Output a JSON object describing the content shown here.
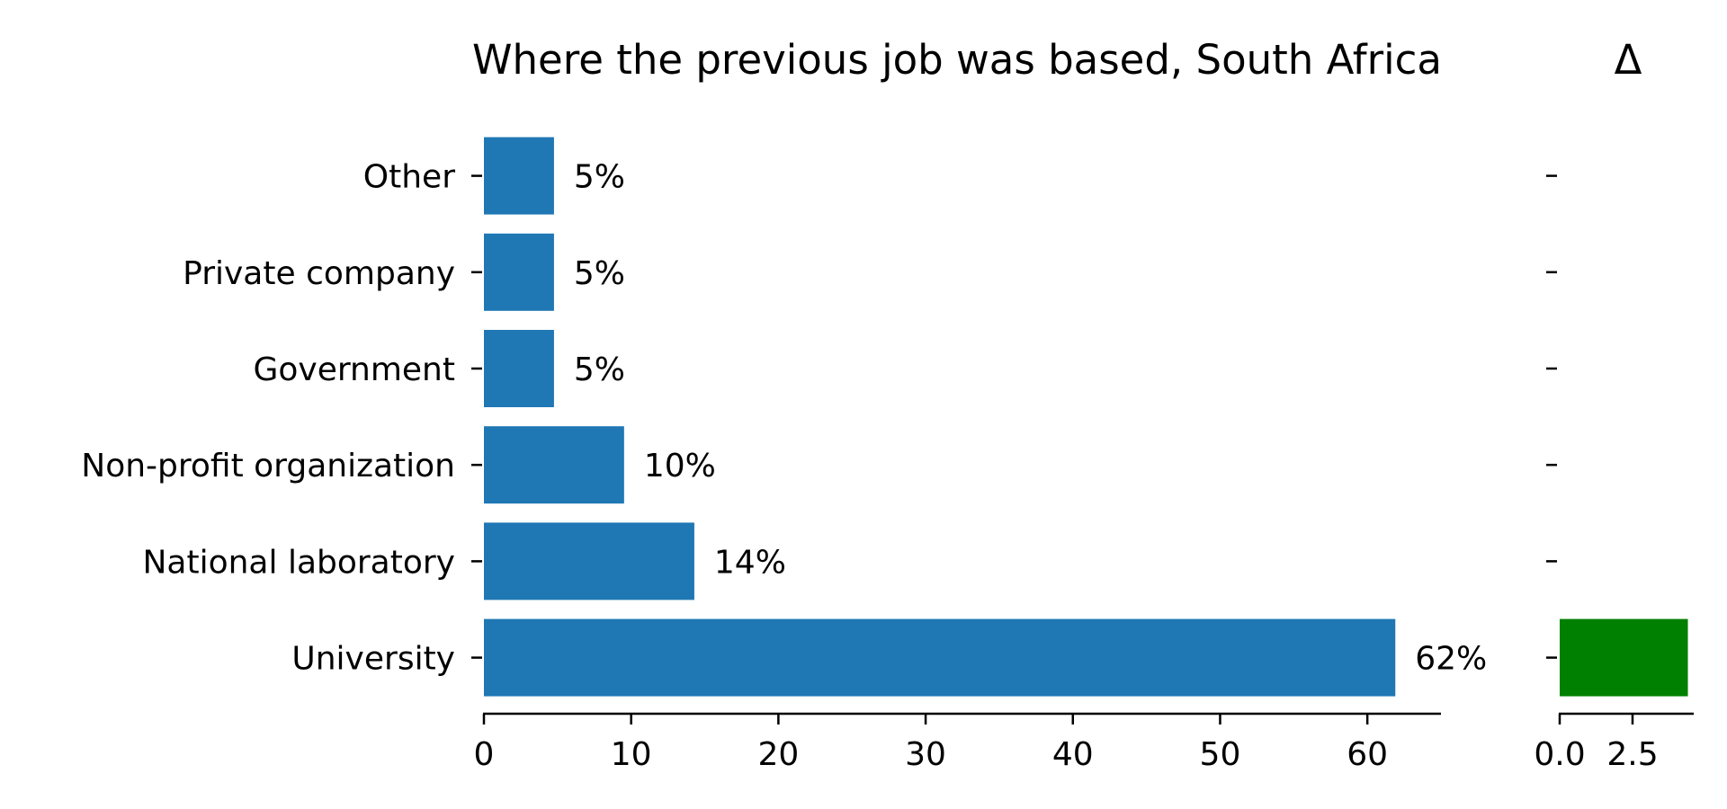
{
  "chart_data": [
    {
      "type": "bar",
      "orientation": "horizontal",
      "title": "Where the previous job was based, South Africa",
      "categories": [
        "Other",
        "Private company",
        "Government",
        "Non-profit organization",
        "National laboratory",
        "University"
      ],
      "values": [
        4.76,
        4.76,
        4.76,
        9.52,
        14.29,
        61.9
      ],
      "data_labels": [
        "5%",
        "5%",
        "5%",
        "10%",
        "14%",
        "62%"
      ],
      "xlim": [
        0,
        65
      ],
      "xticks": [
        0,
        10,
        20,
        30,
        40,
        50,
        60
      ],
      "xtick_labels": [
        "0",
        "10",
        "20",
        "30",
        "40",
        "50",
        "60"
      ],
      "bar_color": "#1f77b4",
      "grid": false
    },
    {
      "type": "bar",
      "orientation": "horizontal",
      "title": "Δ",
      "categories": [
        "Other",
        "Private company",
        "Government",
        "Non-profit organization",
        "National laboratory",
        "University"
      ],
      "values": [
        null,
        null,
        null,
        null,
        null,
        4.4
      ],
      "xlim": [
        0,
        4.6
      ],
      "xticks": [
        0,
        2.5
      ],
      "xtick_labels": [
        "0.0",
        "2.5"
      ],
      "bar_color": "#008000",
      "grid": false
    }
  ]
}
